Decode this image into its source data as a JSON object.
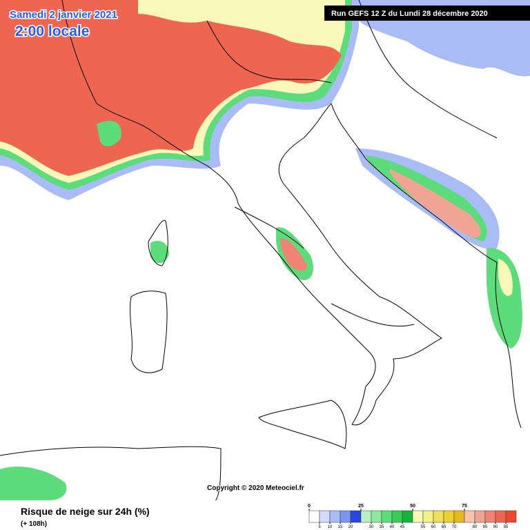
{
  "header": {
    "date": "Samedi 2 janvier 2021",
    "time": "2:00 locale",
    "run": "Run GEFS 12 Z du Lundi 28 décembre 2020"
  },
  "footer": {
    "copyright": "Copyright © 2020 Meteociel.fr",
    "title": "Risque de neige sur 24h (%)",
    "lead": "(+ 108h)"
  },
  "legend": {
    "range": [
      0,
      100
    ],
    "colors": [
      "#ffffff",
      "#d2dcfa",
      "#aabcf6",
      "#7c96f0",
      "#2a46e0",
      "#b8f0c4",
      "#8ce8a0",
      "#5cdc7a",
      "#38cc58",
      "#18b43a",
      "#f8f8b8",
      "#f2f088",
      "#eee058",
      "#ecd034",
      "#e8b822",
      "#f8c4ae",
      "#f2a494",
      "#f08474",
      "#ee6650",
      "#e84a30"
    ],
    "top_ticks": [
      0,
      25,
      50,
      75
    ],
    "bottom_ticks": [
      5,
      10,
      15,
      20,
      30,
      35,
      40,
      45,
      55,
      60,
      65,
      70,
      80,
      85,
      90,
      95
    ]
  }
}
